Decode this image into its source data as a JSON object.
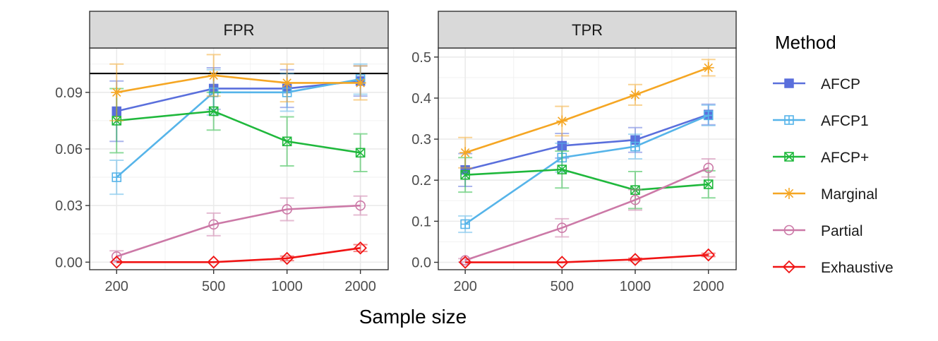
{
  "chart_data": {
    "type": "line",
    "xlabel": "Sample size",
    "x_scale": "log",
    "x": [
      200,
      500,
      1000,
      2000
    ],
    "x_tick_labels": [
      "200",
      "500",
      "1000",
      "2000"
    ],
    "legend": {
      "title": "Method",
      "placement": "right"
    },
    "methods": [
      {
        "name": "AFCP",
        "color": "#5a6fdc",
        "marker": "square-filled"
      },
      {
        "name": "AFCP1",
        "color": "#56b4e9",
        "marker": "square-plus"
      },
      {
        "name": "AFCP+",
        "color": "#1fb83c",
        "marker": "square-x"
      },
      {
        "name": "Marginal",
        "color": "#f5a623",
        "marker": "asterisk"
      },
      {
        "name": "Partial",
        "color": "#cc79a7",
        "marker": "circle"
      },
      {
        "name": "Exhaustive",
        "color": "#f01414",
        "marker": "diamond"
      }
    ],
    "panels": [
      {
        "strip": "FPR",
        "ylim": [
          -0.004,
          0.1135
        ],
        "yticks": [
          0.0,
          0.03,
          0.06,
          0.09
        ],
        "ytick_labels": [
          "0.00",
          "0.03",
          "0.06",
          "0.09"
        ],
        "hline": 0.1,
        "grid": true,
        "series": [
          {
            "name": "AFCP",
            "values": [
              0.08,
              0.092,
              0.092,
              0.096
            ],
            "err": [
              0.016,
              0.011,
              0.01,
              0.008
            ]
          },
          {
            "name": "AFCP1",
            "values": [
              0.045,
              0.09,
              0.09,
              0.097
            ],
            "err": [
              0.009,
              0.012,
              0.01,
              0.008
            ]
          },
          {
            "name": "AFCP+",
            "values": [
              0.075,
              0.08,
              0.064,
              0.058
            ],
            "err": [
              0.017,
              0.01,
              0.013,
              0.01
            ]
          },
          {
            "name": "Marginal",
            "values": [
              0.09,
              0.099,
              0.095,
              0.095
            ],
            "err": [
              0.015,
              0.011,
              0.01,
              0.009
            ]
          },
          {
            "name": "Partial",
            "values": [
              0.003,
              0.02,
              0.028,
              0.03
            ],
            "err": [
              0.003,
              0.006,
              0.006,
              0.005
            ]
          },
          {
            "name": "Exhaustive",
            "values": [
              0.0,
              0.0,
              0.002,
              0.0075
            ],
            "err": [
              0,
              0,
              0.0012,
              0.0018
            ]
          }
        ]
      },
      {
        "strip": "TPR",
        "ylim": [
          -0.018,
          0.522
        ],
        "yticks": [
          0.0,
          0.1,
          0.2,
          0.3,
          0.4,
          0.5
        ],
        "ytick_labels": [
          "0.0",
          "0.1",
          "0.2",
          "0.3",
          "0.4",
          "0.5"
        ],
        "grid": true,
        "series": [
          {
            "name": "AFCP",
            "values": [
              0.225,
              0.284,
              0.298,
              0.36
            ],
            "err": [
              0.04,
              0.03,
              0.03,
              0.025
            ]
          },
          {
            "name": "AFCP1",
            "values": [
              0.093,
              0.255,
              0.282,
              0.358
            ],
            "err": [
              0.02,
              0.035,
              0.03,
              0.025
            ]
          },
          {
            "name": "AFCP+",
            "values": [
              0.213,
              0.226,
              0.176,
              0.19
            ],
            "err": [
              0.042,
              0.045,
              0.045,
              0.033
            ]
          },
          {
            "name": "Marginal",
            "values": [
              0.267,
              0.344,
              0.408,
              0.474
            ],
            "err": [
              0.037,
              0.036,
              0.025,
              0.02
            ]
          },
          {
            "name": "Partial",
            "values": [
              0.005,
              0.084,
              0.152,
              0.23
            ],
            "err": [
              0.004,
              0.022,
              0.025,
              0.022
            ]
          },
          {
            "name": "Exhaustive",
            "values": [
              0.0,
              0.0,
              0.007,
              0.018
            ],
            "err": [
              0,
              0,
              0.003,
              0.004
            ]
          }
        ]
      }
    ]
  }
}
